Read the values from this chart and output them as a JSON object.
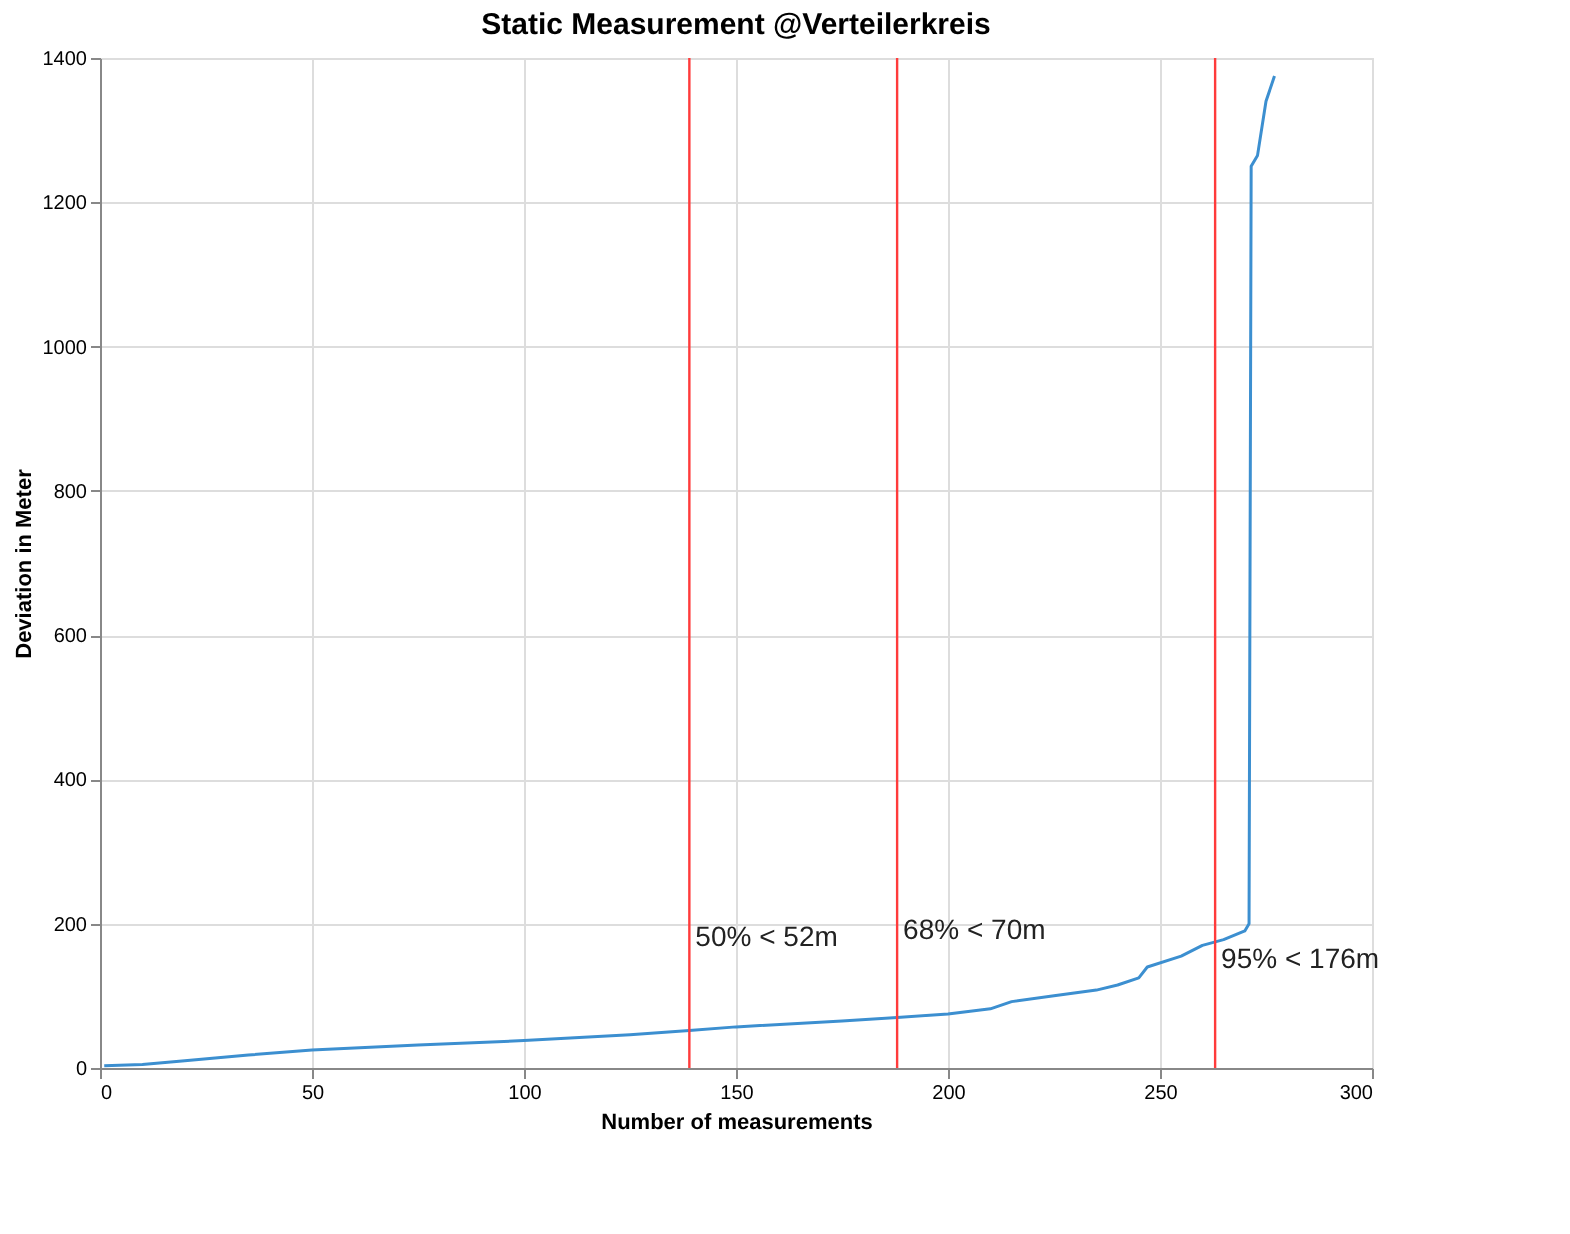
{
  "chart_data": {
    "type": "line",
    "title": "Static Measurement @Verteilerkreis",
    "xlabel": "Number of measurements",
    "ylabel": "Deviation in Meter",
    "x": [
      1,
      10,
      20,
      35,
      50,
      75,
      100,
      125,
      139,
      150,
      175,
      188,
      200,
      210,
      215,
      225,
      235,
      240,
      245,
      247,
      255,
      260,
      265,
      270,
      271,
      271.5,
      273,
      275,
      277
    ],
    "series": [
      {
        "color": "#3c8fd0",
        "values": [
          3,
          5,
          10,
          18,
          25,
          32,
          38,
          46,
          52,
          57,
          65,
          70,
          75,
          82,
          92,
          100,
          108,
          115,
          125,
          140,
          155,
          170,
          178,
          190,
          200,
          1250,
          1265,
          1340,
          1375
        ]
      }
    ],
    "xlim": [
      0,
      300
    ],
    "xticks": [
      0,
      50,
      100,
      150,
      200,
      250,
      300
    ],
    "ylim": [
      0,
      1400
    ],
    "yticks": [
      0,
      200,
      400,
      600,
      800,
      1000,
      1200,
      1400
    ],
    "grid": true,
    "ref_lines": [
      {
        "axis": "x",
        "value": 139,
        "color": "#ff3b3b"
      },
      {
        "axis": "x",
        "value": 188,
        "color": "#ff3b3b"
      },
      {
        "axis": "x",
        "value": 263,
        "color": "#ff3b3b"
      }
    ],
    "annotations": [
      {
        "text": "50% < 52m",
        "x": 139,
        "y": 180
      },
      {
        "text": "68% < 70m",
        "x": 188,
        "y": 190
      },
      {
        "text": "95% < 176m",
        "x": 263,
        "y": 150
      }
    ]
  }
}
